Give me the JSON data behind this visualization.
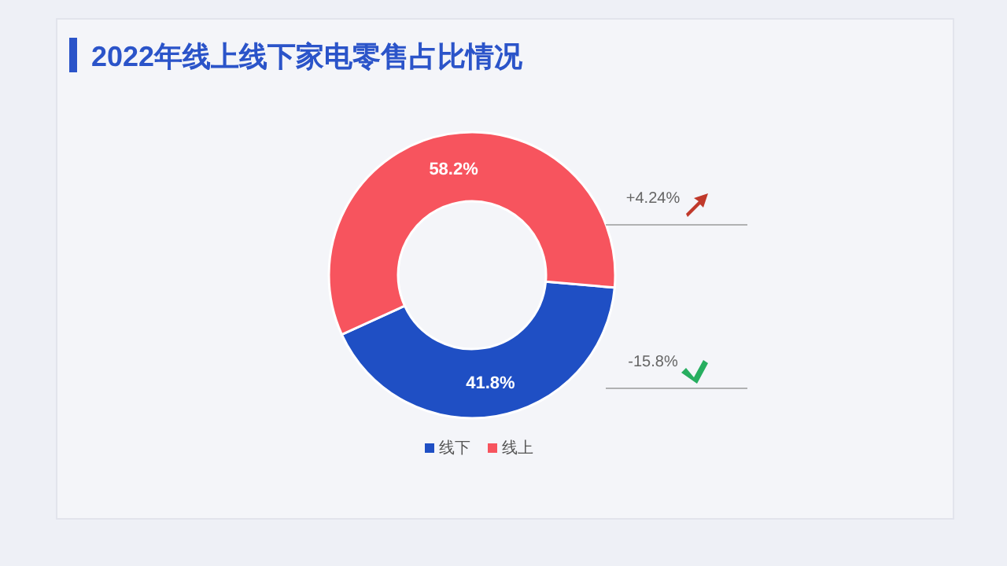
{
  "chart_data": {
    "type": "donut",
    "title": "2022年线上线下家电零售占比情况",
    "categories": [
      "线下",
      "线上"
    ],
    "values": [
      41.8,
      58.2
    ],
    "colors": [
      "#1f4fc4",
      "#f7545e"
    ],
    "value_labels": [
      "41.8%",
      "58.2%"
    ],
    "legend": "bottom",
    "annotations": [
      "+4.24%",
      "-15.8%"
    ]
  }
}
